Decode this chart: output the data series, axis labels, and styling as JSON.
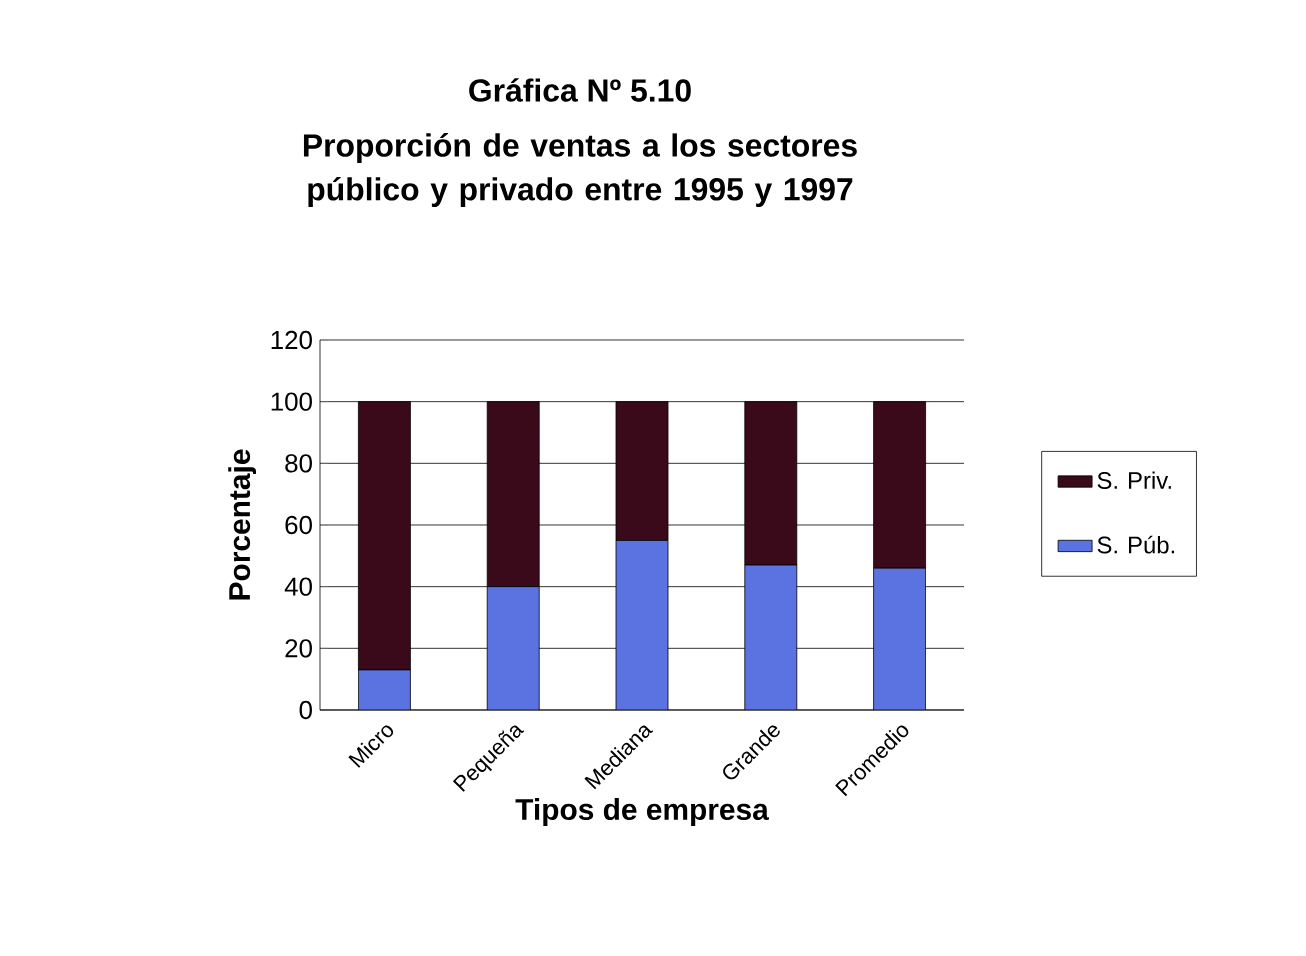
{
  "chart_data": {
    "type": "bar",
    "stacked": true,
    "title": "Gráfica Nº 5.10",
    "subtitle": "Proporción de ventas a los sectores público y privado entre 1995 y 1997",
    "xlabel": "Tipos de empresa",
    "ylabel": "Porcentaje",
    "categories": [
      "Micro",
      "Pequeña",
      "Mediana",
      "Grande",
      "Promedio"
    ],
    "series": [
      {
        "name": "S. Púb.",
        "color": "#5b73e0",
        "values": [
          13,
          40,
          55,
          47,
          46
        ]
      },
      {
        "name": "S. Priv.",
        "color": "#3a0a1a",
        "values": [
          87,
          60,
          45,
          53,
          54
        ]
      }
    ],
    "ylim": [
      0,
      120
    ],
    "yticks": [
      0,
      20,
      40,
      60,
      80,
      100,
      120
    ],
    "grid": "y",
    "legend": "right"
  }
}
